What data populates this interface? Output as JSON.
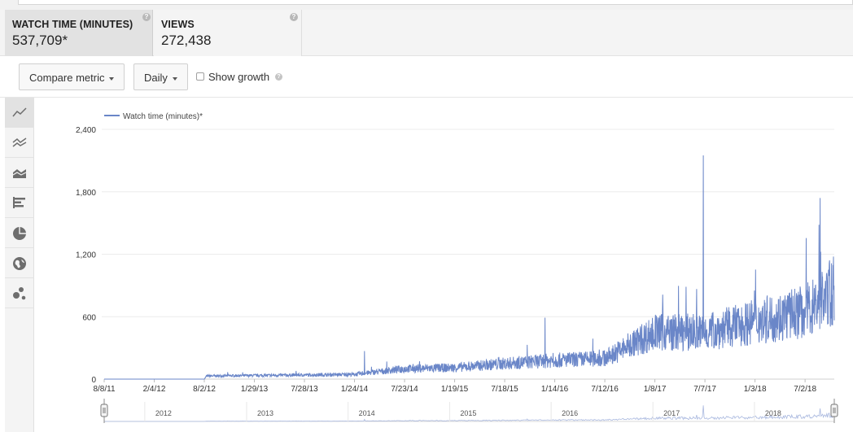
{
  "metrics": [
    {
      "label": "WATCH TIME (MINUTES)",
      "value": "537,709*",
      "active": true
    },
    {
      "label": "VIEWS",
      "value": "272,438",
      "active": false
    }
  ],
  "controls": {
    "compare_label": "Compare metric",
    "period_label": "Daily",
    "show_growth_label": "Show growth",
    "show_growth_checked": false
  },
  "side_tools": [
    "line-chart-icon",
    "multi-line-chart-icon",
    "stacked-area-icon",
    "bar-chart-icon",
    "pie-chart-icon",
    "globe-map-icon",
    "bubble-chart-icon"
  ],
  "colors": {
    "series": "#6a86c8",
    "grid": "#ececec",
    "axis_text": "#333333",
    "active_tab": "#e2e2e2"
  },
  "chart_data": {
    "type": "line",
    "series": [
      {
        "name": "Watch time (minutes)*"
      }
    ],
    "y_ticks": [
      "0",
      "600",
      "1,200",
      "1,800",
      "2,400"
    ],
    "y_tick_values": [
      0,
      600,
      1200,
      1800,
      2400
    ],
    "ylim": [
      0,
      2400
    ],
    "x_tick_labels": [
      "8/8/11",
      "2/4/12",
      "8/2/12",
      "1/29/13",
      "7/28/13",
      "1/24/14",
      "7/23/14",
      "1/19/15",
      "7/18/15",
      "1/14/16",
      "7/12/16",
      "1/8/17",
      "7/7/17",
      "1/3/18",
      "7/2/18"
    ],
    "x_range": [
      "8/8/11",
      "10/15/18"
    ],
    "approx_daily_trend": [
      {
        "date": "8/8/11",
        "value": 0
      },
      {
        "date": "8/2/12",
        "value": 0
      },
      {
        "date": "8/10/12",
        "value": 30
      },
      {
        "date": "7/28/13",
        "value": 40
      },
      {
        "date": "1/24/14",
        "value": 45
      },
      {
        "date": "7/23/14",
        "value": 100
      },
      {
        "date": "1/19/15",
        "value": 110
      },
      {
        "date": "7/18/15",
        "value": 150
      },
      {
        "date": "1/14/16",
        "value": 180
      },
      {
        "date": "7/12/16",
        "value": 200
      },
      {
        "date": "1/8/17",
        "value": 450
      },
      {
        "date": "7/7/17",
        "value": 450
      },
      {
        "date": "1/3/18",
        "value": 550
      },
      {
        "date": "7/2/18",
        "value": 650
      },
      {
        "date": "10/15/18",
        "value": 850
      }
    ],
    "peaks": [
      {
        "date": "3/1/14",
        "value": 270
      },
      {
        "date": "12/10/15",
        "value": 590
      },
      {
        "date": "7/1/17",
        "value": 2150
      },
      {
        "date": "8/25/18",
        "value": 1740
      }
    ],
    "navigator_years": [
      "2012",
      "2013",
      "2014",
      "2015",
      "2016",
      "2017",
      "2018"
    ]
  }
}
